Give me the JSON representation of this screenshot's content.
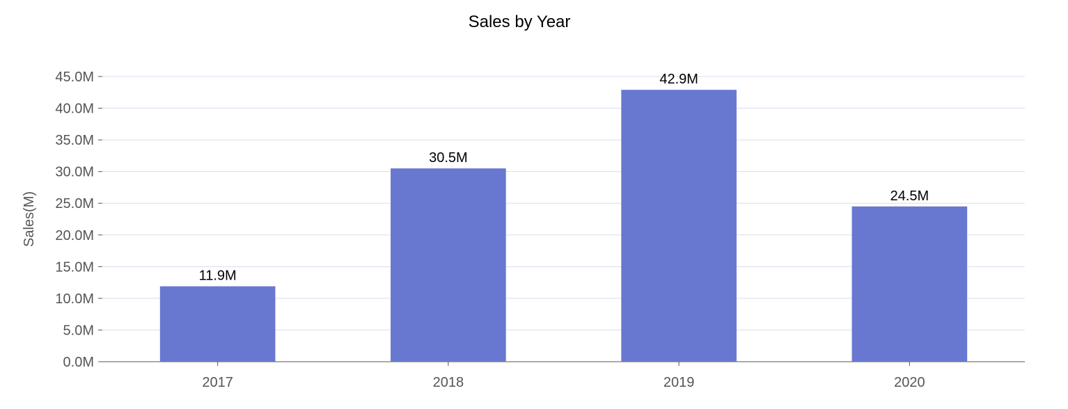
{
  "chart_data": {
    "type": "bar",
    "title": "Sales by Year",
    "xlabel": "",
    "ylabel": "Sales(M)",
    "categories": [
      "2017",
      "2018",
      "2019",
      "2020"
    ],
    "values": [
      11.9,
      30.5,
      42.9,
      24.5
    ],
    "data_labels": [
      "11.9M",
      "30.5M",
      "42.9M",
      "24.5M"
    ],
    "ylim": [
      0,
      45
    ],
    "yticks": [
      0,
      5,
      10,
      15,
      20,
      25,
      30,
      35,
      40,
      45
    ],
    "ytick_labels": [
      "0.0M",
      "5.0M",
      "10.0M",
      "15.0M",
      "20.0M",
      "25.0M",
      "30.0M",
      "35.0M",
      "40.0M",
      "45.0M"
    ],
    "grid": true,
    "colors": {
      "bar": "#6878d1",
      "grid": "#dcdcf0",
      "axis": "#555555"
    }
  }
}
